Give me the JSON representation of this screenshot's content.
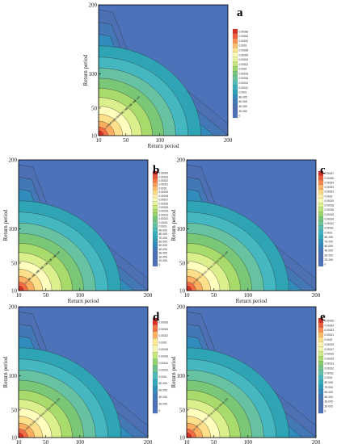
{
  "chart_data": [
    {
      "panel": "a",
      "type": "contour",
      "xlabel": "Return period",
      "ylabel": "Return period",
      "xticks": [
        10,
        50,
        100,
        200
      ],
      "yticks": [
        10,
        50,
        100,
        200
      ],
      "xlim": [
        10,
        200
      ],
      "ylim": [
        10,
        200
      ],
      "colorbar": [
        "0.00036",
        "0.00034",
        "0.00032",
        "0.0003",
        "0.00028",
        "0.00026",
        "0.00024",
        "0.00022",
        "0.0002",
        "0.00018",
        "0.00016",
        "0.00014",
        "0.00012",
        "0.0001",
        "8E-005",
        "6E-005",
        "4E-005",
        "2E-005",
        "0"
      ],
      "contour_labels": [
        "2E-005",
        "4E-005",
        "6E-005",
        "8E-005",
        "0.0001",
        "0.00012",
        "0.00014",
        "0.00016"
      ],
      "grid": false
    },
    {
      "panel": "b",
      "type": "contour",
      "xlabel": "Return period",
      "ylabel": "Return period",
      "xticks": [
        10,
        50,
        100,
        200
      ],
      "yticks": [
        10,
        50,
        100,
        200
      ],
      "xlim": [
        10,
        200
      ],
      "ylim": [
        10,
        200
      ],
      "colorbar": [
        "0.00024",
        "0.00023",
        "0.00022",
        "0.00021",
        "0.0002",
        "0.00019",
        "0.00018",
        "0.00017",
        "0.00016",
        "0.00015",
        "0.00014",
        "0.00013",
        "0.00012",
        "0.00011",
        "0.0001",
        "9E-005",
        "8E-005",
        "7E-005",
        "6E-005",
        "5E-005",
        "4E-005",
        "3E-005",
        "2E-005",
        "1E-005",
        "0"
      ],
      "contour_labels": [
        "1E-005",
        "2E-005",
        "3E-005",
        "4E-005",
        "5E-005",
        "6E-005",
        "7E-005",
        "8E-005"
      ],
      "grid": false
    },
    {
      "panel": "c",
      "type": "contour",
      "xlabel": "Return period",
      "ylabel": "Return period",
      "xticks": [
        10,
        50,
        100,
        200
      ],
      "yticks": [
        10,
        50,
        100,
        200
      ],
      "xlim": [
        10,
        200
      ],
      "ylim": [
        10,
        200
      ],
      "colorbar": [
        "0.00027",
        "0.00026",
        "0.00024",
        "0.00023",
        "0.00022",
        "0.0002",
        "0.00019",
        "0.00018",
        "0.00016",
        "0.00015",
        "0.00014",
        "0.00012",
        "0.00011",
        "0.0001",
        "8E-005",
        "7E-005",
        "6E-005",
        "4E-005",
        "3E-005",
        "2E-005",
        "0"
      ],
      "contour_labels": [
        "2E-005",
        "3E-005",
        "4E-005",
        "6E-005",
        "7E-005",
        "8E-005"
      ],
      "grid": false
    },
    {
      "panel": "d",
      "type": "contour",
      "xlabel": "Return period",
      "ylabel": "Return period",
      "xticks": [
        10,
        50,
        100,
        200
      ],
      "yticks": [
        10,
        50,
        100,
        200
      ],
      "xlim": [
        10,
        200
      ],
      "ylim": [
        10,
        200
      ],
      "colorbar": [
        "0.00026",
        "0.00024",
        "0.00022",
        "0.0002",
        "0.00018",
        "0.00016",
        "0.00014",
        "0.00012",
        "0.0001",
        "8E-005",
        "6E-005",
        "4E-005",
        "2E-005",
        "0"
      ],
      "contour_labels": [
        "2E-005",
        "4E-005",
        "6E-005",
        "8E-005",
        "0.0001",
        "0.00012"
      ],
      "grid": false
    },
    {
      "panel": "e",
      "type": "contour",
      "xlabel": "Return period",
      "ylabel": "Return period",
      "xticks": [
        10,
        50,
        100,
        200
      ],
      "yticks": [
        10,
        50,
        100,
        200
      ],
      "xlim": [
        10,
        200
      ],
      "ylim": [
        10,
        200
      ],
      "colorbar": [
        "0.00025",
        "0.00024",
        "0.00022",
        "0.00021",
        "0.0002",
        "0.00019",
        "0.00017",
        "0.00016",
        "0.00015",
        "0.00013",
        "0.00012",
        "0.00011",
        "0.0001",
        "8E-005",
        "7E-005",
        "6E-005",
        "4E-005",
        "3E-005",
        "2E-005",
        "0"
      ],
      "contour_labels": [
        "2E-005",
        "3E-005",
        "4E-005",
        "6E-005",
        "7E-005",
        "8E-005"
      ],
      "grid": false
    }
  ]
}
